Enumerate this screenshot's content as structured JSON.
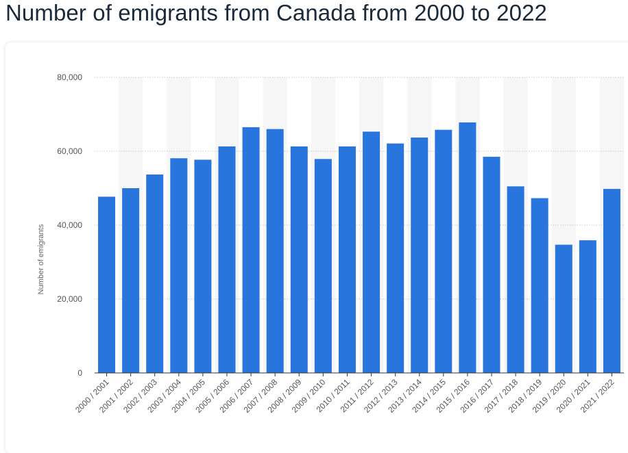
{
  "page": {
    "title": "Number of emigrants from Canada from 2000 to 2022"
  },
  "colors": {
    "bar": "#2876dd",
    "stripe": "#f6f6f6",
    "grid": "#c8c8c8"
  },
  "chart_data": {
    "type": "bar",
    "title": "Number of emigrants from Canada from 2000 to 2022",
    "xlabel": "",
    "ylabel": "Number of emigrants",
    "ylim": [
      0,
      80000
    ],
    "yticks": [
      0,
      20000,
      40000,
      60000,
      80000
    ],
    "ytick_labels": [
      "0",
      "20,000",
      "40,000",
      "60,000",
      "80,000"
    ],
    "grid": true,
    "categories": [
      "2000 / 2001",
      "2001 / 2002",
      "2002 / 2003",
      "2003 / 2004",
      "2004 / 2005",
      "2005 / 2006",
      "2006 / 2007",
      "2007 / 2008",
      "2008 / 2009",
      "2009 / 2010",
      "2010 / 2011",
      "2011 / 2012",
      "2012 / 2013",
      "2013 / 2014",
      "2014 / 2015",
      "2015 / 2016",
      "2016 / 2017",
      "2017 / 2018",
      "2018 / 2019",
      "2019 / 2020",
      "2020 / 2021",
      "2021 / 2022"
    ],
    "values": [
      47700,
      50000,
      53700,
      58100,
      57700,
      61300,
      66500,
      66000,
      61300,
      57900,
      61300,
      65300,
      62100,
      63700,
      65800,
      67800,
      58500,
      50500,
      47300,
      34700,
      35900,
      49800
    ]
  }
}
